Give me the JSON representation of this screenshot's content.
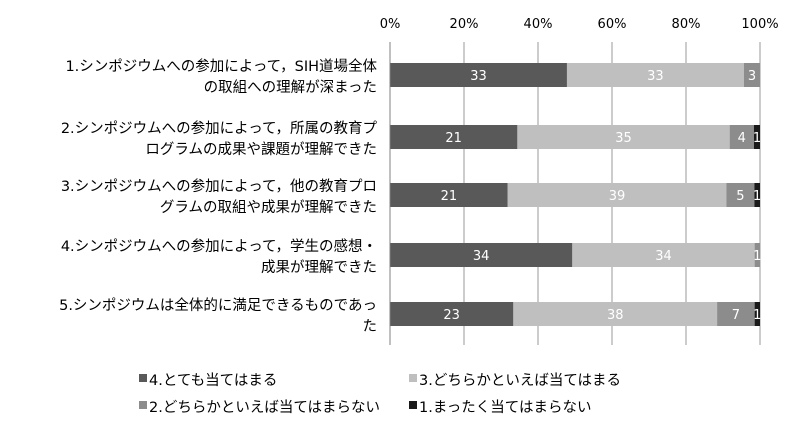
{
  "chart_data": {
    "type": "bar",
    "orientation": "horizontal",
    "stacked": "percent",
    "xlim": [
      0,
      100
    ],
    "xticks": [
      "0%",
      "20%",
      "40%",
      "60%",
      "80%",
      "100%"
    ],
    "xaxis_position": "top",
    "grid": true,
    "legend_position": "bottom",
    "categories": [
      [
        "1.シンポジウムへの参加によって，SIH道場全体",
        "の取組への理解が深まった"
      ],
      [
        "2.シンポジウムへの参加によって，所属の教育プ",
        "ログラムの成果や課題が理解できた"
      ],
      [
        "3.シンポジウムへの参加によって，他の教育プロ",
        "グラムの取組や成果が理解できた"
      ],
      [
        "4.シンポジウムへの参加によって，学生の感想・",
        "成果が理解できた"
      ],
      [
        "5.シンポジウムは全体的に満足できるものであっ",
        "た"
      ]
    ],
    "series": [
      {
        "name": "4.とても当てはまる",
        "color": "#595959",
        "values": [
          33,
          21,
          21,
          34,
          23
        ],
        "labels": [
          "33",
          "21",
          "21",
          "34",
          "23"
        ]
      },
      {
        "name": "3.どちらかといえば当てはまる",
        "color": "#bfbfbf",
        "values": [
          33,
          35,
          39,
          34,
          38
        ],
        "labels": [
          "33",
          "35",
          "39",
          "34",
          "38"
        ]
      },
      {
        "name": "2.どちらかといえば当てはまらない",
        "color": "#8c8c8c",
        "values": [
          3,
          4,
          5,
          1,
          7
        ],
        "labels": [
          "3",
          "4",
          "5",
          "1",
          "7"
        ]
      },
      {
        "name": "1.まったく当てはまらない",
        "color": "#1a1a1a",
        "values": [
          0,
          1,
          1,
          0,
          1
        ],
        "labels": [
          "",
          "1",
          "1",
          "",
          "1"
        ]
      }
    ]
  }
}
